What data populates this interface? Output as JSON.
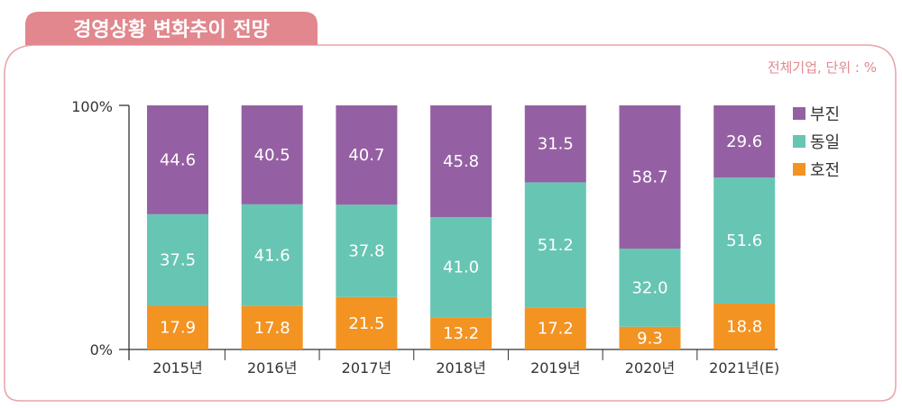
{
  "title": "경영상황 변화추이 전망",
  "unit_note": "전체기업, 단위 : %",
  "colors": {
    "frame": "#e8a3a8",
    "title_bg": "#e1878d"
  },
  "chart_data": {
    "type": "bar",
    "stacked": true,
    "normalized": true,
    "categories": [
      "2015년",
      "2016년",
      "2017년",
      "2018년",
      "2019년",
      "2020년",
      "2021년(E)"
    ],
    "series": [
      {
        "name": "호전",
        "color": "#f39322",
        "values": [
          17.9,
          17.8,
          21.5,
          13.2,
          17.2,
          9.3,
          18.8
        ]
      },
      {
        "name": "동일",
        "color": "#67c5b3",
        "values": [
          37.5,
          41.6,
          37.8,
          41.0,
          51.2,
          32.0,
          51.6
        ]
      },
      {
        "name": "부진",
        "color": "#9560a3",
        "values": [
          44.6,
          40.5,
          40.7,
          45.8,
          31.5,
          58.7,
          29.6
        ]
      }
    ],
    "legend_order": [
      "부진",
      "동일",
      "호전"
    ],
    "legend_position": "right",
    "ylim": [
      0,
      100
    ],
    "yticks": [
      "0%",
      "100%"
    ],
    "grid": false
  }
}
